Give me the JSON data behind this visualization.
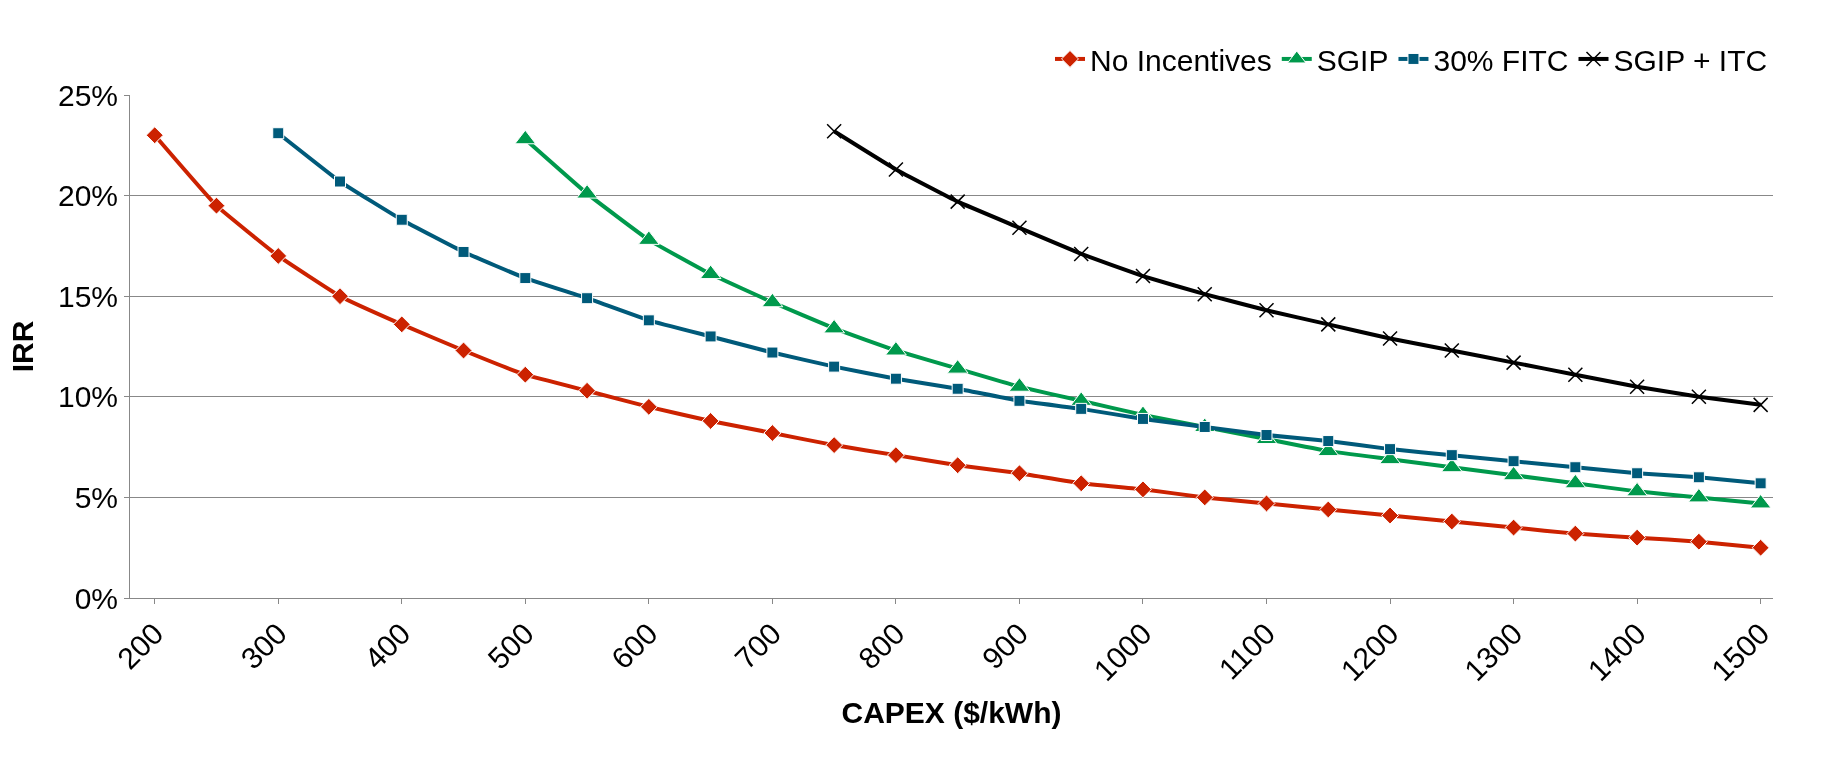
{
  "chart_data": {
    "type": "line",
    "xlabel": "CAPEX ($/kWh)",
    "ylabel": "IRR",
    "x": [
      200,
      250,
      300,
      350,
      400,
      450,
      500,
      550,
      600,
      650,
      700,
      750,
      800,
      850,
      900,
      950,
      1000,
      1050,
      1100,
      1150,
      1200,
      1250,
      1300,
      1350,
      1400,
      1450,
      1500
    ],
    "series": [
      {
        "name": "No Incentives",
        "color": "#cc2200",
        "marker": "diamond",
        "values": [
          23.0,
          19.5,
          17.0,
          15.0,
          13.6,
          12.3,
          11.1,
          10.3,
          9.5,
          8.8,
          8.2,
          7.6,
          7.1,
          6.6,
          6.2,
          5.7,
          5.4,
          5.0,
          4.7,
          4.4,
          4.1,
          3.8,
          3.5,
          3.2,
          3.0,
          2.8,
          2.5
        ]
      },
      {
        "name": "SGIP",
        "color": "#00994c",
        "marker": "triangle",
        "values": [
          null,
          null,
          null,
          null,
          null,
          null,
          22.8,
          20.1,
          17.8,
          16.1,
          14.7,
          13.4,
          12.3,
          11.4,
          10.5,
          9.8,
          9.1,
          8.5,
          7.9,
          7.3,
          6.9,
          6.5,
          6.1,
          5.7,
          5.3,
          5.0,
          4.7
        ]
      },
      {
        "name": "30% FITC",
        "color": "#005a7a",
        "marker": "square",
        "values": [
          null,
          null,
          23.1,
          20.7,
          18.8,
          17.2,
          15.9,
          14.9,
          13.8,
          13.0,
          12.2,
          11.5,
          10.9,
          10.4,
          9.8,
          9.4,
          8.9,
          8.5,
          8.1,
          7.8,
          7.4,
          7.1,
          6.8,
          6.5,
          6.2,
          6.0,
          5.7
        ]
      },
      {
        "name": "SGIP + ITC",
        "color": "#000000",
        "marker": "cross",
        "values": [
          null,
          null,
          null,
          null,
          null,
          null,
          null,
          null,
          null,
          null,
          null,
          23.2,
          21.3,
          19.7,
          18.4,
          17.1,
          16.0,
          15.1,
          14.3,
          13.6,
          12.9,
          12.3,
          11.7,
          11.1,
          10.5,
          10.0,
          9.6
        ]
      }
    ],
    "xlim": [
      180,
      1510
    ],
    "xticks": [
      200,
      300,
      400,
      500,
      600,
      700,
      800,
      900,
      1000,
      1100,
      1200,
      1300,
      1400,
      1500
    ],
    "ylim": [
      0,
      25
    ],
    "yticks": [
      {
        "value": 0,
        "label": "0%"
      },
      {
        "value": 5,
        "label": "5%"
      },
      {
        "value": 10,
        "label": "10%"
      },
      {
        "value": 15,
        "label": "15%"
      },
      {
        "value": 20,
        "label": "20%"
      },
      {
        "value": 25,
        "label": "25%"
      }
    ],
    "grid": "y",
    "legend": "top right",
    "line_style": "solid"
  }
}
